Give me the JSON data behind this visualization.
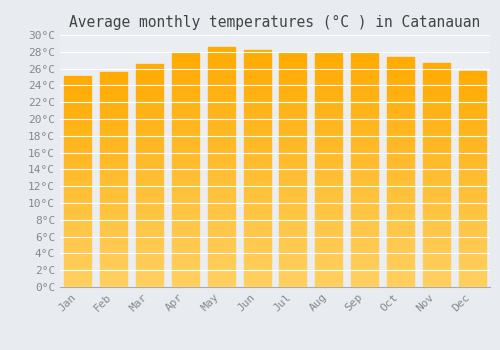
{
  "title": "Average monthly temperatures (°C ) in Catanauan",
  "months": [
    "Jan",
    "Feb",
    "Mar",
    "Apr",
    "May",
    "Jun",
    "Jul",
    "Aug",
    "Sep",
    "Oct",
    "Nov",
    "Dec"
  ],
  "values": [
    25.1,
    25.6,
    26.5,
    27.9,
    28.6,
    28.2,
    27.8,
    27.9,
    27.9,
    27.4,
    26.6,
    25.7
  ],
  "ylim": [
    0,
    30
  ],
  "ytick_step": 2,
  "bar_color_top": "#FFAA00",
  "bar_color_bottom": "#FFD060",
  "background_color": "#E8ECF0",
  "plot_bg_color": "#EAEEF2",
  "grid_color": "#FFFFFF",
  "tick_label_color": "#888888",
  "title_color": "#444444",
  "title_fontsize": 10.5,
  "tick_fontsize": 8,
  "bottom_spine_color": "#AAAAAA"
}
